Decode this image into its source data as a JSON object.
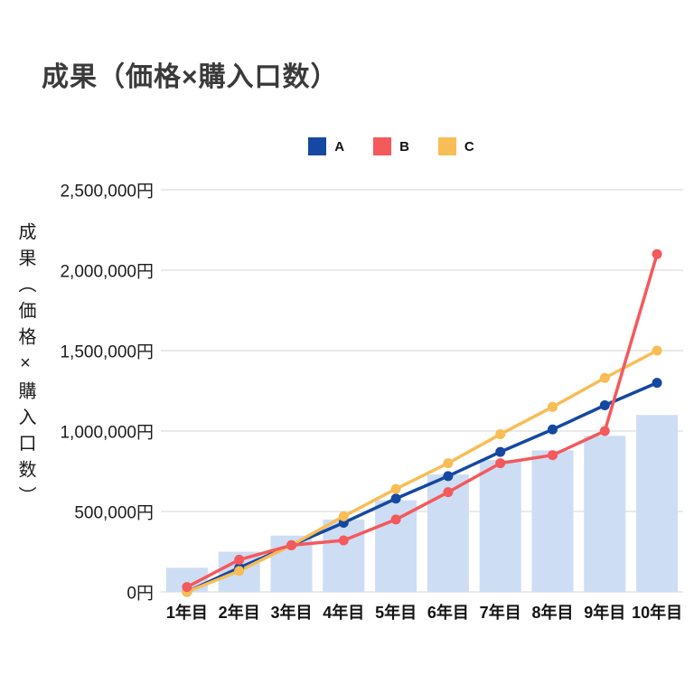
{
  "chart_data": {
    "type": "line+bar",
    "title": "成果（価格×購入口数）",
    "ylabel": "成果（価格×購入口数）",
    "xlabel": "",
    "ylim": [
      0,
      2500000
    ],
    "grid": true,
    "legend_position": "top-center",
    "categories": [
      "1年目",
      "2年目",
      "3年目",
      "4年目",
      "5年目",
      "6年目",
      "7年目",
      "8年目",
      "9年目",
      "10年目"
    ],
    "y_ticks": [
      {
        "value": 0,
        "label": "0円"
      },
      {
        "value": 500000,
        "label": "500,000円"
      },
      {
        "value": 1000000,
        "label": "1,000,000円"
      },
      {
        "value": 1500000,
        "label": "1,500,000円"
      },
      {
        "value": 2000000,
        "label": "2,000,000円"
      },
      {
        "value": 2500000,
        "label": "2,500,000円"
      }
    ],
    "series": [
      {
        "name": "A",
        "color": "#1548a0",
        "values": [
          0,
          150000,
          290000,
          430000,
          580000,
          720000,
          870000,
          1010000,
          1160000,
          1300000
        ]
      },
      {
        "name": "B",
        "color": "#f4595c",
        "values": [
          30000,
          200000,
          290000,
          320000,
          450000,
          620000,
          800000,
          850000,
          1000000,
          2100000
        ]
      },
      {
        "name": "C",
        "color": "#f8bd55",
        "values": [
          0,
          130000,
          290000,
          470000,
          640000,
          800000,
          980000,
          1150000,
          1330000,
          1500000
        ]
      }
    ],
    "bars": {
      "name": "background-bars",
      "color": "#cdddf4",
      "values": [
        150000,
        250000,
        350000,
        450000,
        570000,
        730000,
        820000,
        880000,
        970000,
        1100000
      ]
    }
  }
}
